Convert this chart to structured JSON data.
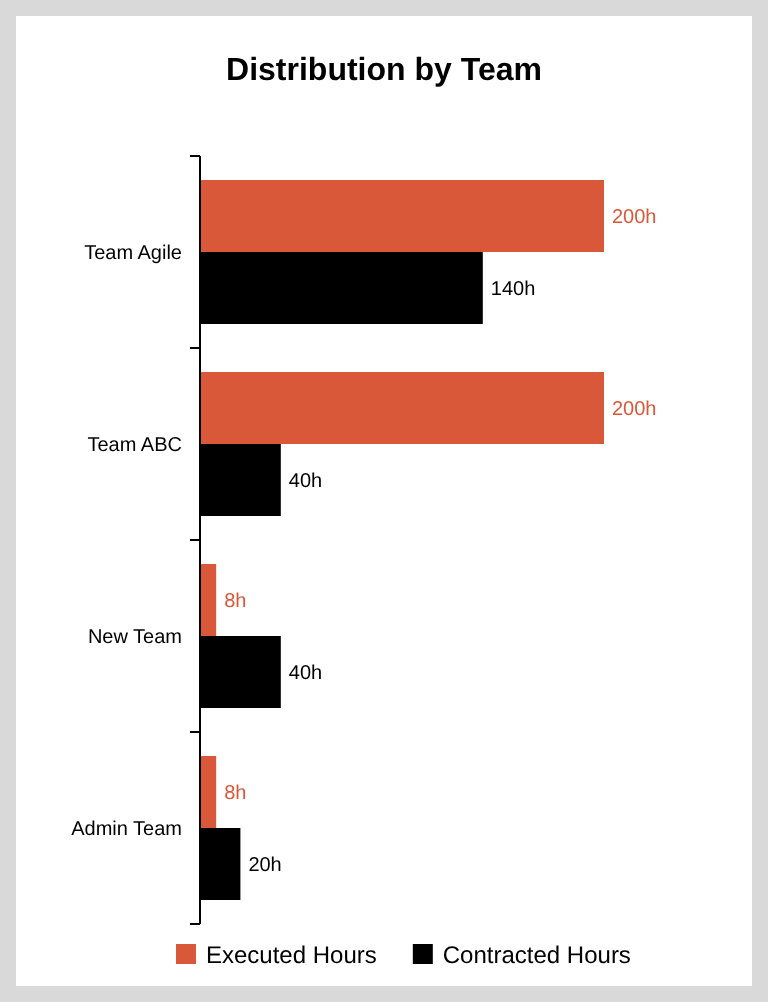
{
  "chart_data": {
    "type": "bar",
    "orientation": "horizontal",
    "title": "Distribution by Team",
    "categories": [
      "Team Agile",
      "Team ABC",
      "New Team",
      "Admin Team"
    ],
    "legend": "bottom",
    "series": [
      {
        "name": "Executed Hours",
        "color": "#d9583a",
        "values": [
          200,
          200,
          8,
          8
        ],
        "value_labels": [
          "200h",
          "200h",
          "8h",
          "8h"
        ]
      },
      {
        "name": "Contracted Hours",
        "color": "#000000",
        "values": [
          140,
          40,
          40,
          20
        ],
        "value_labels": [
          "140h",
          "40h",
          "40h",
          "20h"
        ]
      }
    ]
  }
}
